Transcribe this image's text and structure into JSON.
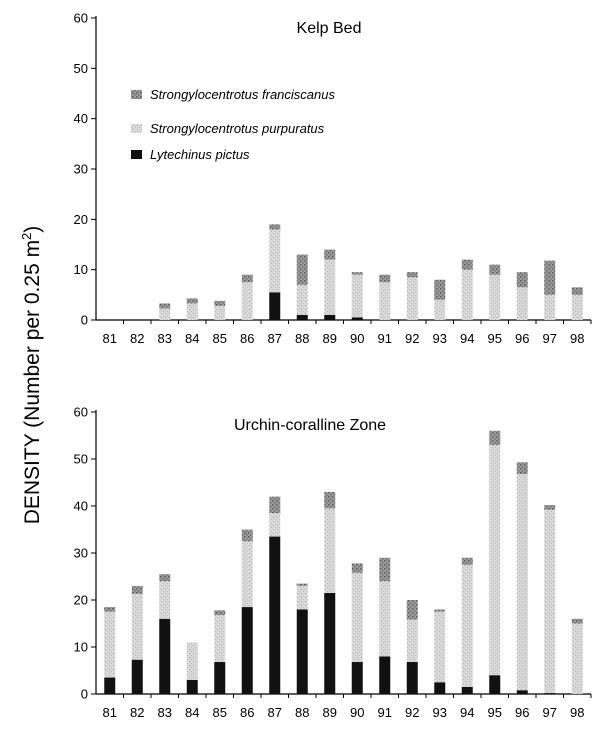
{
  "figure": {
    "ylabel_main": "DENSITY (Number per 0.25 m",
    "ylabel_sup": "2",
    "ylabel_close": ")"
  },
  "legend": [
    {
      "label": "Strongylocentrotus franciscanus",
      "color": "#8a8a8a"
    },
    {
      "label": "Strongylocentrotus purpuratus",
      "color": "#cfcfcf"
    },
    {
      "label": "Lytechinus pictus",
      "color": "#111111"
    }
  ],
  "chart_data": [
    {
      "type": "bar",
      "stacked": true,
      "title": "Kelp Bed",
      "xlabel": "",
      "ylabel": "",
      "categories": [
        "81",
        "82",
        "83",
        "84",
        "85",
        "86",
        "87",
        "88",
        "89",
        "90",
        "91",
        "92",
        "93",
        "94",
        "95",
        "96",
        "97",
        "98"
      ],
      "ylim": [
        0,
        60
      ],
      "yticks": [
        0,
        10,
        20,
        30,
        40,
        50,
        60
      ],
      "series": [
        {
          "name": "Lytechinus pictus",
          "values": [
            0,
            0,
            0,
            0,
            0,
            0,
            5.5,
            1,
            1,
            0.5,
            0,
            0,
            0,
            0,
            0,
            0,
            0,
            0
          ]
        },
        {
          "name": "Strongylocentrotus purpuratus",
          "values": [
            0,
            0,
            2.3,
            3.3,
            2.8,
            7.5,
            12.5,
            6,
            11,
            8.5,
            7.5,
            8.5,
            4,
            10,
            9,
            6.5,
            5,
            5
          ]
        },
        {
          "name": "Strongylocentrotus franciscanus",
          "values": [
            0,
            0,
            1,
            1,
            1,
            1.5,
            1,
            6,
            2,
            0.5,
            1.5,
            1,
            4,
            2,
            2,
            3,
            6.8,
            1.5
          ]
        }
      ]
    },
    {
      "type": "bar",
      "stacked": true,
      "title": "Urchin-coralline Zone",
      "xlabel": "",
      "ylabel": "",
      "categories": [
        "81",
        "82",
        "83",
        "84",
        "85",
        "86",
        "87",
        "88",
        "89",
        "90",
        "91",
        "92",
        "93",
        "94",
        "95",
        "96",
        "97",
        "98"
      ],
      "ylim": [
        0,
        60
      ],
      "yticks": [
        0,
        10,
        20,
        30,
        40,
        50,
        60
      ],
      "series": [
        {
          "name": "Lytechinus pictus",
          "values": [
            3.5,
            7.3,
            16,
            3,
            6.8,
            18.5,
            33.5,
            18,
            21.5,
            6.8,
            8,
            6.8,
            2.5,
            1.5,
            4,
            0.8,
            0.2,
            0
          ]
        },
        {
          "name": "Strongylocentrotus purpuratus",
          "values": [
            14,
            14,
            8,
            8,
            10,
            14,
            5,
            5,
            18,
            19,
            16,
            9,
            15,
            26,
            49,
            46,
            39,
            15
          ]
        },
        {
          "name": "Strongylocentrotus franciscanus",
          "values": [
            1,
            1.7,
            1.5,
            0,
            1,
            2.5,
            3.5,
            0.5,
            3.5,
            2,
            5,
            4.2,
            0.5,
            1.5,
            3,
            2.5,
            1,
            1
          ]
        }
      ]
    }
  ]
}
